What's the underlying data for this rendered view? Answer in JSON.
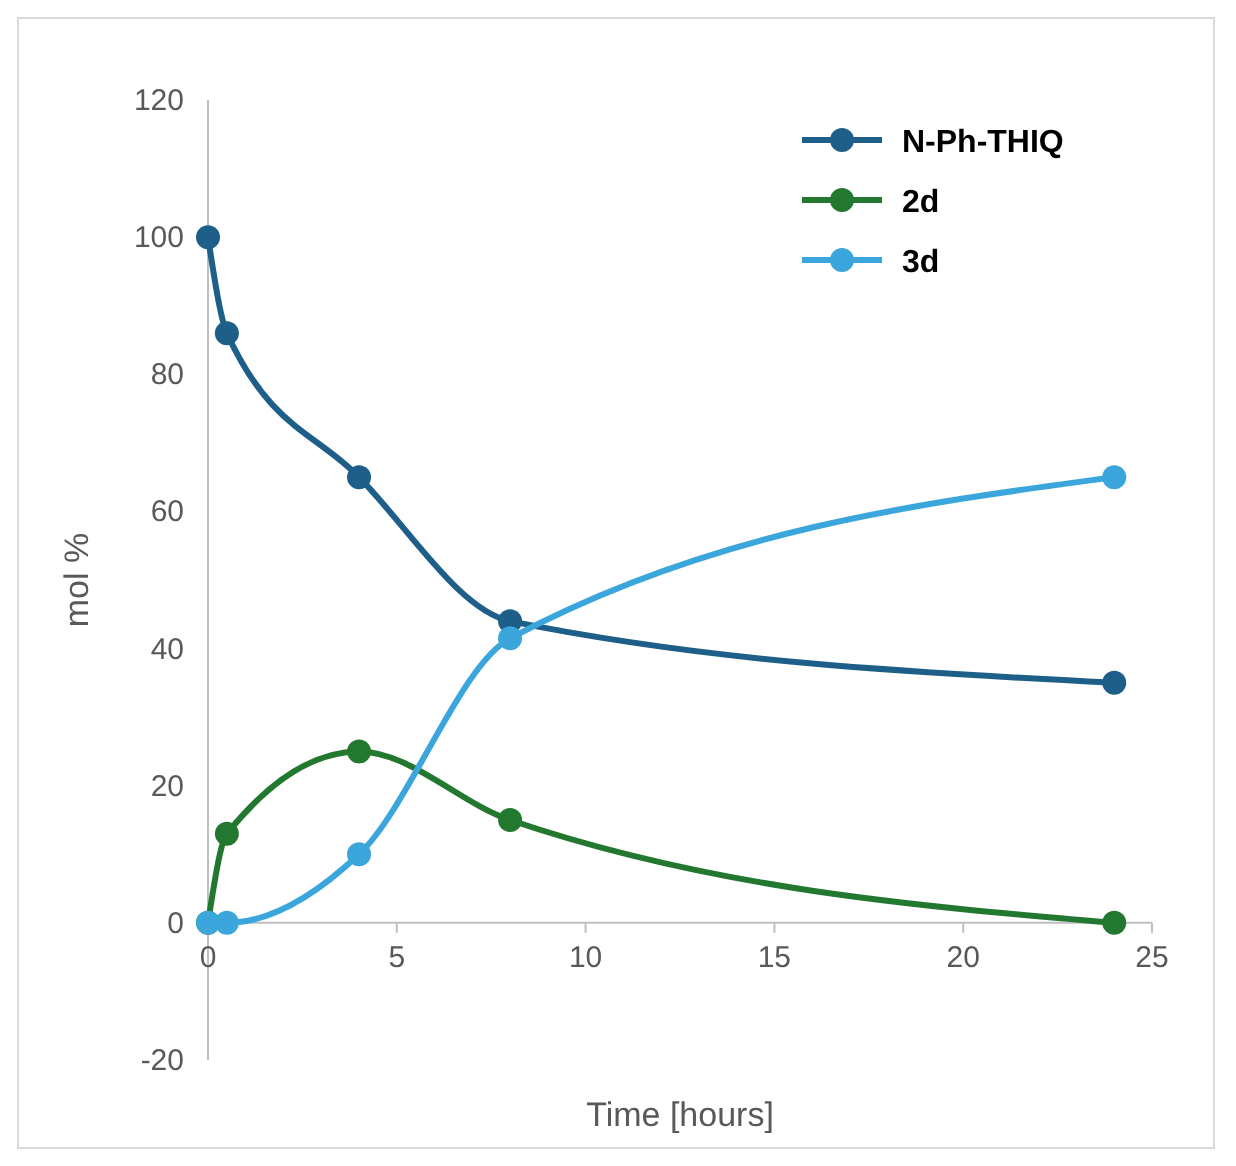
{
  "chart_data": {
    "type": "line",
    "xlabel": "Time [hours]",
    "ylabel": "mol %",
    "xlim": [
      0,
      25
    ],
    "xticks": [
      0,
      5,
      10,
      15,
      20,
      25
    ],
    "ylim": [
      -20,
      120
    ],
    "yticks": [
      -20,
      0,
      20,
      40,
      60,
      80,
      100,
      120
    ],
    "grid": false,
    "legend": "top right",
    "marker": "circle",
    "line_style": "solid",
    "series": [
      {
        "name": "N-Ph-THIQ",
        "color": "#1d5f88",
        "x": [
          0,
          0.5,
          4,
          8,
          24
        ],
        "values": [
          100,
          86,
          65,
          44,
          35
        ]
      },
      {
        "name": "2d",
        "color": "#22782f",
        "x": [
          0,
          0.5,
          4,
          8,
          24
        ],
        "values": [
          0,
          13,
          25,
          15,
          0
        ]
      },
      {
        "name": "3d",
        "color": "#3ba6dc",
        "x": [
          0,
          0.5,
          4,
          8,
          24
        ],
        "values": [
          0,
          0,
          10,
          41.5,
          65
        ]
      }
    ]
  }
}
